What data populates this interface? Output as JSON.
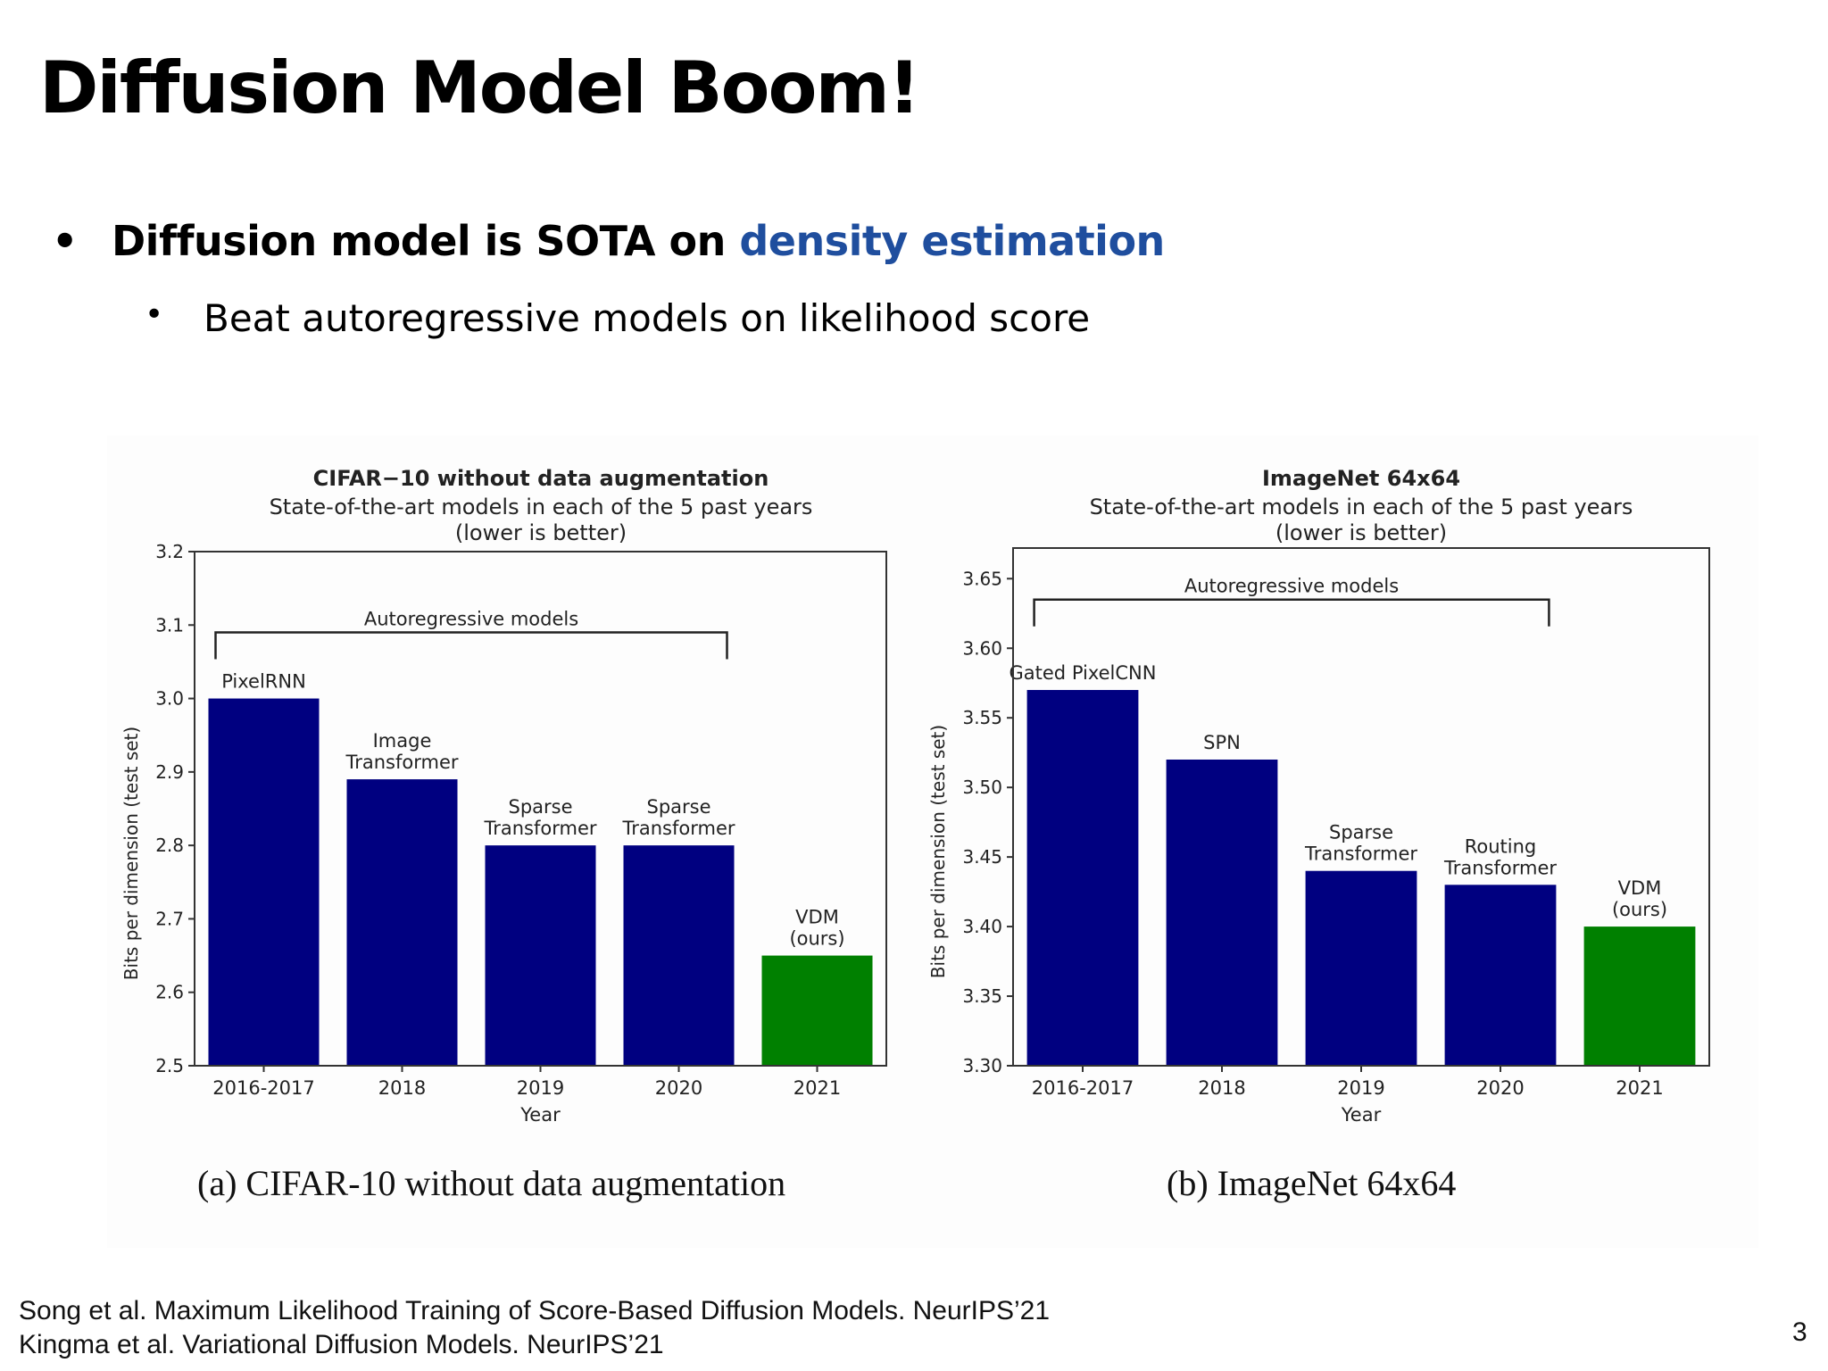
{
  "slide": {
    "title": "Diffusion Model Boom!",
    "bullet1": {
      "symbol": "•",
      "prefix": "Diffusion model is SOTA on ",
      "highlight": "density estimation",
      "highlight_color": "#1f4e9e"
    },
    "bullet2": {
      "symbol": "•",
      "text": "Beat autoregressive models on likelihood score"
    },
    "references": [
      "Song et al. Maximum Likelihood Training of Score-Based Diffusion Models. NeurIPS’21",
      "Kingma et al. Variational Diffusion Models. NeurIPS’21"
    ],
    "page_number": "3"
  },
  "chart_data": [
    {
      "type": "bar",
      "title": "CIFAR−10 without data augmentation",
      "subtitle": [
        "State-of-the-art models in each of the 5 past years",
        "(lower is better)"
      ],
      "xlabel": "Year",
      "ylabel": "Bits per dimension (test set)",
      "caption": "(a) CIFAR-10 without data augmentation",
      "categories": [
        "2016-2017",
        "2018",
        "2019",
        "2020",
        "2021"
      ],
      "values": [
        3.0,
        2.89,
        2.8,
        2.8,
        2.65
      ],
      "bar_labels": [
        [
          "PixelRNN"
        ],
        [
          "Image",
          "Transformer"
        ],
        [
          "Sparse",
          "Transformer"
        ],
        [
          "Sparse",
          "Transformer"
        ],
        [
          "VDM",
          "(ours)"
        ]
      ],
      "bar_colors": [
        "#000080",
        "#000080",
        "#000080",
        "#000080",
        "#008000"
      ],
      "ylim": [
        2.5,
        3.2
      ],
      "yticks": [
        "2.5",
        "2.6",
        "2.7",
        "2.8",
        "2.9",
        "3.0",
        "3.1",
        "3.2"
      ],
      "bracket": {
        "label": "Autoregressive models",
        "from_index": 0,
        "to_index": 3,
        "y": 3.09
      },
      "grid": false
    },
    {
      "type": "bar",
      "title": "ImageNet 64x64",
      "subtitle": [
        "State-of-the-art models in each of the 5 past years",
        "(lower is better)"
      ],
      "xlabel": "Year",
      "ylabel": "Bits per dimension (test set)",
      "caption": "(b) ImageNet 64x64",
      "categories": [
        "2016-2017",
        "2018",
        "2019",
        "2020",
        "2021"
      ],
      "values": [
        3.57,
        3.52,
        3.44,
        3.43,
        3.4
      ],
      "bar_labels": [
        [
          "Gated PixelCNN"
        ],
        [
          "SPN"
        ],
        [
          "Sparse",
          "Transformer"
        ],
        [
          "Routing",
          "Transformer"
        ],
        [
          "VDM",
          "(ours)"
        ]
      ],
      "bar_colors": [
        "#000080",
        "#000080",
        "#000080",
        "#000080",
        "#008000"
      ],
      "ylim": [
        3.3,
        3.672
      ],
      "yticks": [
        "3.30",
        "3.35",
        "3.40",
        "3.45",
        "3.50",
        "3.55",
        "3.60",
        "3.65"
      ],
      "bracket": {
        "label": "Autoregressive models",
        "from_index": 0,
        "to_index": 3,
        "y": 3.635
      },
      "grid": false
    }
  ]
}
